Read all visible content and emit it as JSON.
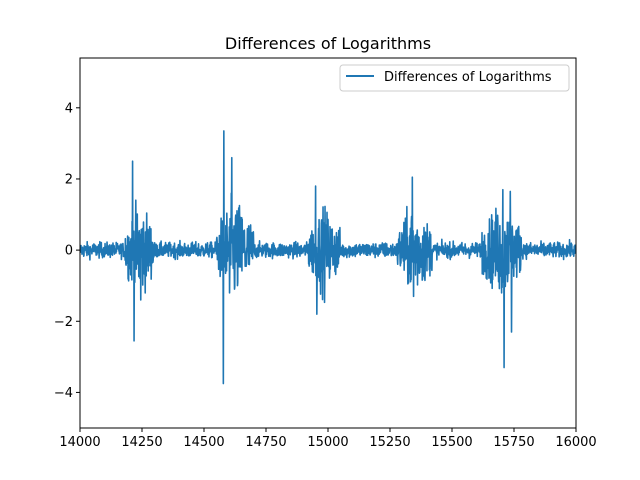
{
  "chart_data": {
    "type": "line",
    "title": "Differences of Logarithms",
    "xlabel": "",
    "ylabel": "",
    "xlim": [
      14000,
      16000
    ],
    "ylim": [
      -5,
      5.4
    ],
    "xticks": [
      14000,
      14250,
      14500,
      14750,
      15000,
      15250,
      15500,
      15750,
      16000
    ],
    "yticks": [
      -4,
      -2,
      0,
      2,
      4
    ],
    "xtick_labels": [
      "14000",
      "14250",
      "14500",
      "14750",
      "15000",
      "15250",
      "15500",
      "15750",
      "16000"
    ],
    "ytick_labels": [
      "−4",
      "−2",
      "0",
      "2",
      "4"
    ],
    "grid": false,
    "legend_position": "top-right",
    "series": [
      {
        "name": "Differences of Logarithms",
        "color": "#1f77b4",
        "spikes": [
          {
            "x": 14212,
            "y": 2.5
          },
          {
            "x": 14218,
            "y": -2.55
          },
          {
            "x": 14245,
            "y": -1.4
          },
          {
            "x": 14580,
            "y": 3.35
          },
          {
            "x": 14578,
            "y": -3.75
          },
          {
            "x": 14612,
            "y": 2.6
          },
          {
            "x": 14603,
            "y": -1.2
          },
          {
            "x": 14950,
            "y": 1.8
          },
          {
            "x": 14955,
            "y": -1.8
          },
          {
            "x": 15340,
            "y": 2.05
          },
          {
            "x": 15345,
            "y": -1.3
          },
          {
            "x": 15705,
            "y": 1.7
          },
          {
            "x": 15710,
            "y": -3.3
          },
          {
            "x": 15735,
            "y": 1.65
          },
          {
            "x": 15740,
            "y": -2.3
          }
        ],
        "active_regions": [
          {
            "x_start": 14180,
            "x_end": 14300,
            "amplitude": 0.8
          },
          {
            "x_start": 14550,
            "x_end": 14700,
            "amplitude": 0.9
          },
          {
            "x_start": 14920,
            "x_end": 15050,
            "amplitude": 0.7
          },
          {
            "x_start": 15280,
            "x_end": 15420,
            "amplitude": 0.75
          },
          {
            "x_start": 15620,
            "x_end": 15780,
            "amplitude": 0.8
          }
        ],
        "baseline_amplitude": 0.15
      }
    ]
  }
}
